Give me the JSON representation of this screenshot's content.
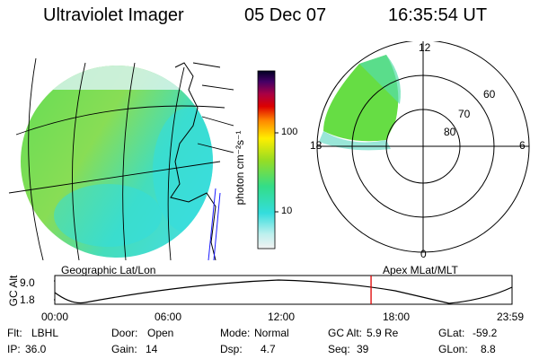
{
  "header": {
    "title": "Ultraviolet Imager",
    "date": "05 Dec 07",
    "time": "16:35:54 UT"
  },
  "colorbar": {
    "title": "photon cm⁻²s⁻¹",
    "ticks": [
      "100",
      "10"
    ]
  },
  "polar": {
    "mlt_labels": [
      "12",
      "18",
      "6",
      "0"
    ],
    "lat_labels": [
      "60",
      "70",
      "80"
    ]
  },
  "panel_labels": {
    "left": "Geographic Lat/Lon",
    "right": "Apex MLat/MLT"
  },
  "altitude_plot": {
    "ylabel": "GC Alt",
    "ymax": "9.0",
    "ymin": "1.8",
    "xticks": [
      "00:00",
      "06:00",
      "12:00",
      "18:00",
      "23:59"
    ],
    "current_time_hours": 16.6,
    "marker_color": "#dd0000"
  },
  "info": {
    "row1": [
      {
        "label": "Flt:",
        "value": "LBHL"
      },
      {
        "label": "Door:",
        "value": "Open"
      },
      {
        "label": "Mode:",
        "value": "Normal"
      },
      {
        "label": "GC Alt:",
        "value": "5.9 Re"
      },
      {
        "label": "GLat:",
        "value": "-59.2"
      }
    ],
    "row2": [
      {
        "label": "IP:",
        "value": "36.0"
      },
      {
        "label": "Gain:",
        "value": "14"
      },
      {
        "label": "Dsp:",
        "value": "4.7"
      },
      {
        "label": "Seq:",
        "value": "39"
      },
      {
        "label": "GLon:",
        "value": "8.8"
      }
    ]
  },
  "colors": {
    "aurora_green": "#66dd33",
    "aurora_cyan": "#33ddcc",
    "pale": "#ccf2ef"
  }
}
